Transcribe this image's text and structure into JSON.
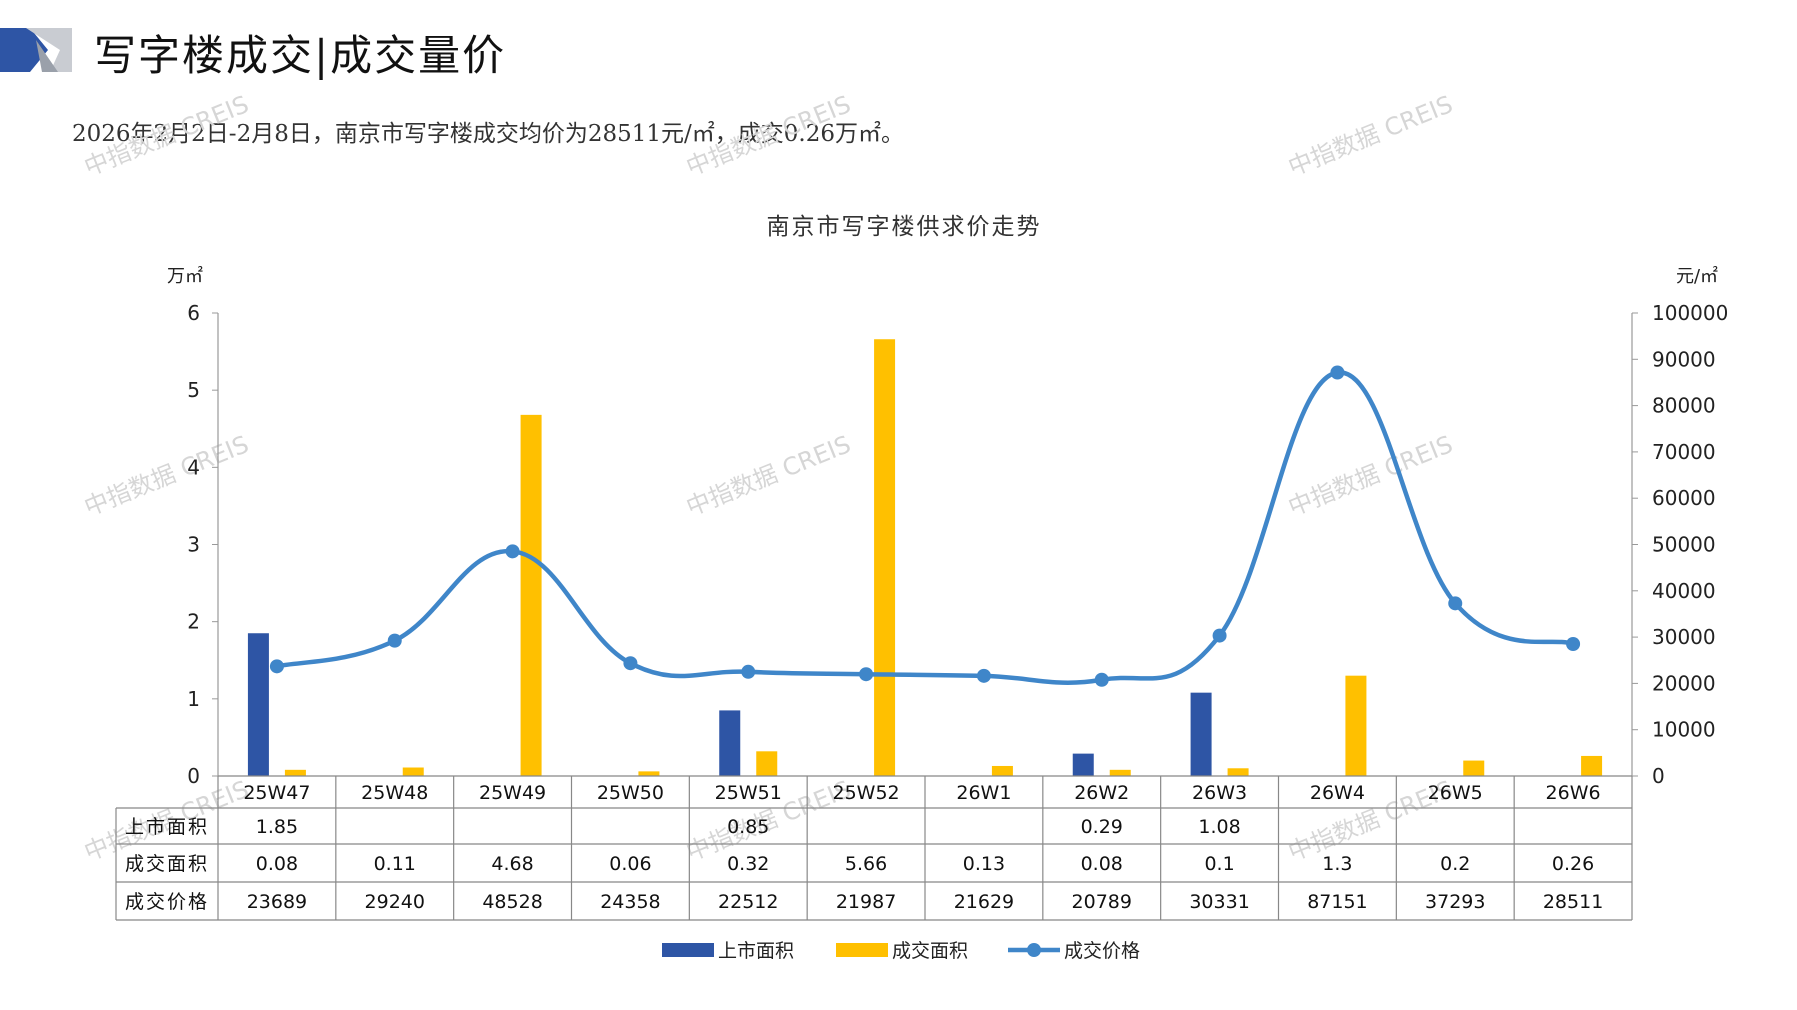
{
  "header": {
    "title": "写字楼成交|成交量价",
    "subtitle": "2026年2月2日-2月8日，南京市写字楼成交均价为28511元/㎡，成交0.26万㎡。"
  },
  "watermark": "中指数据 CREIS",
  "colors": {
    "listed": "#2E55A5",
    "traded": "#FFC000",
    "price": "#3F86C9",
    "corner_dark": "#2E55A5",
    "corner_light": "#B4B8C0"
  },
  "chart_data": {
    "type": "bar",
    "title": "南京市写字楼供求价走势",
    "y_left_unit": "万㎡",
    "y_right_unit": "元/㎡",
    "ylim_left": [
      0,
      6
    ],
    "ylim_right": [
      0,
      100000
    ],
    "yticks_left": [
      "0",
      "1",
      "2",
      "3",
      "4",
      "5",
      "6"
    ],
    "yticks_right": [
      "0",
      "10000",
      "20000",
      "30000",
      "40000",
      "50000",
      "60000",
      "70000",
      "80000",
      "90000",
      "100000"
    ],
    "categories": [
      "25W47",
      "25W48",
      "25W49",
      "25W50",
      "25W51",
      "25W52",
      "26W1",
      "26W2",
      "26W3",
      "26W4",
      "26W5",
      "26W6"
    ],
    "series": [
      {
        "name": "上市面积",
        "type": "bar",
        "axis": "left",
        "values": [
          1.85,
          null,
          null,
          null,
          0.85,
          null,
          null,
          0.29,
          1.08,
          null,
          null,
          null
        ],
        "labels": [
          "1.85",
          "",
          "",
          "",
          "0.85",
          "",
          "",
          "0.29",
          "1.08",
          "",
          "",
          ""
        ]
      },
      {
        "name": "成交面积",
        "type": "bar",
        "axis": "left",
        "values": [
          0.08,
          0.11,
          4.68,
          0.06,
          0.32,
          5.66,
          0.13,
          0.08,
          0.1,
          1.3,
          0.2,
          0.26
        ],
        "labels": [
          "0.08",
          "0.11",
          "4.68",
          "0.06",
          "0.32",
          "5.66",
          "0.13",
          "0.08",
          "0.1",
          "1.3",
          "0.2",
          "0.26"
        ]
      },
      {
        "name": "成交价格",
        "type": "line",
        "axis": "right",
        "values": [
          23689,
          29240,
          48528,
          24358,
          22512,
          21987,
          21629,
          20789,
          30331,
          87151,
          37293,
          28511
        ],
        "labels": [
          "23689",
          "29240",
          "48528",
          "24358",
          "22512",
          "21987",
          "21629",
          "20789",
          "30331",
          "87151",
          "37293",
          "28511"
        ]
      }
    ],
    "legend": "bottom",
    "grid": false
  }
}
